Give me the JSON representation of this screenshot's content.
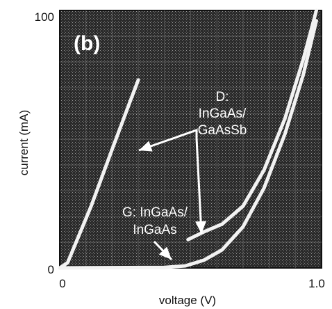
{
  "chart_data": {
    "type": "line",
    "panel_label": "(b)",
    "xlabel": "voltage (V)",
    "ylabel": "current (mA)",
    "xlim": [
      0,
      1.0
    ],
    "ylim": [
      0,
      100
    ],
    "x_ticks": [
      "0",
      "1.0"
    ],
    "y_ticks": [
      "100",
      "0"
    ],
    "background": "#2b2b2b",
    "line_color": "#f2f2f2",
    "series": [
      {
        "points": [
          [
            0.0,
            0.0
          ],
          [
            0.03,
            2.0
          ],
          [
            0.12,
            24.0
          ],
          [
            0.2,
            46.0
          ],
          [
            0.27,
            65.0
          ],
          [
            0.3,
            73.0
          ]
        ]
      },
      {
        "points": [
          [
            0.0,
            0.0
          ],
          [
            0.4,
            0.2
          ],
          [
            0.48,
            0.8
          ],
          [
            0.55,
            3.0
          ],
          [
            0.62,
            7.0
          ],
          [
            0.7,
            16.0
          ],
          [
            0.78,
            31.0
          ],
          [
            0.86,
            52.0
          ],
          [
            0.93,
            75.0
          ],
          [
            0.98,
            96.0
          ]
        ]
      },
      {
        "points": [
          [
            0.49,
            11.0
          ],
          [
            0.55,
            14.0
          ],
          [
            0.62,
            17.0
          ],
          [
            0.7,
            24.0
          ],
          [
            0.78,
            38.0
          ],
          [
            0.86,
            58.0
          ],
          [
            0.93,
            81.0
          ],
          [
            0.98,
            100.0
          ]
        ]
      }
    ],
    "annotations": {
      "d_label": [
        "D:",
        "InGaAs/",
        "GaAsSb"
      ],
      "g_label": [
        "G: InGaAs/",
        "InGaAs"
      ]
    }
  }
}
